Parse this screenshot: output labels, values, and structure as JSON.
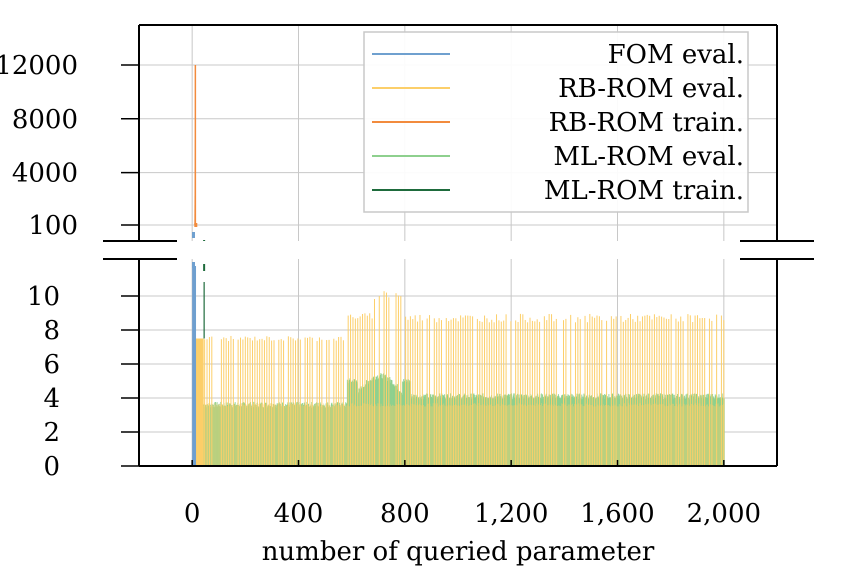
{
  "chart_data": {
    "type": "bar",
    "xlabel": "number of queried parameter",
    "ylabel": "",
    "title": "",
    "grid": true,
    "legend_position": "top-right",
    "x_ticks": [
      0,
      400,
      800,
      1200,
      1600,
      2000
    ],
    "x_tick_labels": [
      "0",
      "400",
      "800",
      "1,200",
      "1,600",
      "2,000"
    ],
    "xlim": [
      -200,
      2200
    ],
    "y_broken_axis": true,
    "y_lower": {
      "range": [
        0,
        10
      ],
      "ticks": [
        0,
        2,
        4,
        6,
        8,
        10
      ],
      "tick_labels": [
        "0",
        "2",
        "4",
        "6",
        "8",
        "10"
      ]
    },
    "y_upper": {
      "range": [
        100,
        12000
      ],
      "ticks": [
        100,
        4000,
        8000,
        12000
      ],
      "tick_labels": [
        "100",
        "4000",
        "8000",
        "12000"
      ]
    },
    "colors": {
      "fom_eval": "#6fa0cf",
      "rb_eval": "#fccf6a",
      "rb_train": "#f28b3d",
      "ml_eval": "#8ed08e",
      "ml_train": "#1e6b3c"
    },
    "series": [
      {
        "name": "FOM eval.",
        "color": "#6fa0cf",
        "range": [
          0,
          12
        ],
        "value_approx": 10.5,
        "exceeds_lower_axis": true
      },
      {
        "name": "RB-ROM eval.",
        "color": "#fccf6a",
        "range": [
          13,
          2000
        ],
        "baseline": 3.6,
        "spike_values": [
          7.5,
          9.0,
          10.2
        ]
      },
      {
        "name": "RB-ROM train.",
        "color": "#f28b3d",
        "peak_x": 12,
        "peak_value": 12000
      },
      {
        "name": "ML-ROM eval.",
        "color": "#8ed08e",
        "range": [
          40,
          2000
        ],
        "values_by_region": [
          {
            "x": [
              40,
              580
            ],
            "value": 3.6
          },
          {
            "x": [
              580,
              820
            ],
            "value": 5.0
          },
          {
            "x": [
              820,
              2000
            ],
            "value": 4.1
          }
        ]
      },
      {
        "name": "ML-ROM train.",
        "color": "#1e6b3c",
        "peak_x": 45,
        "peak_value": 10.5
      }
    ]
  }
}
